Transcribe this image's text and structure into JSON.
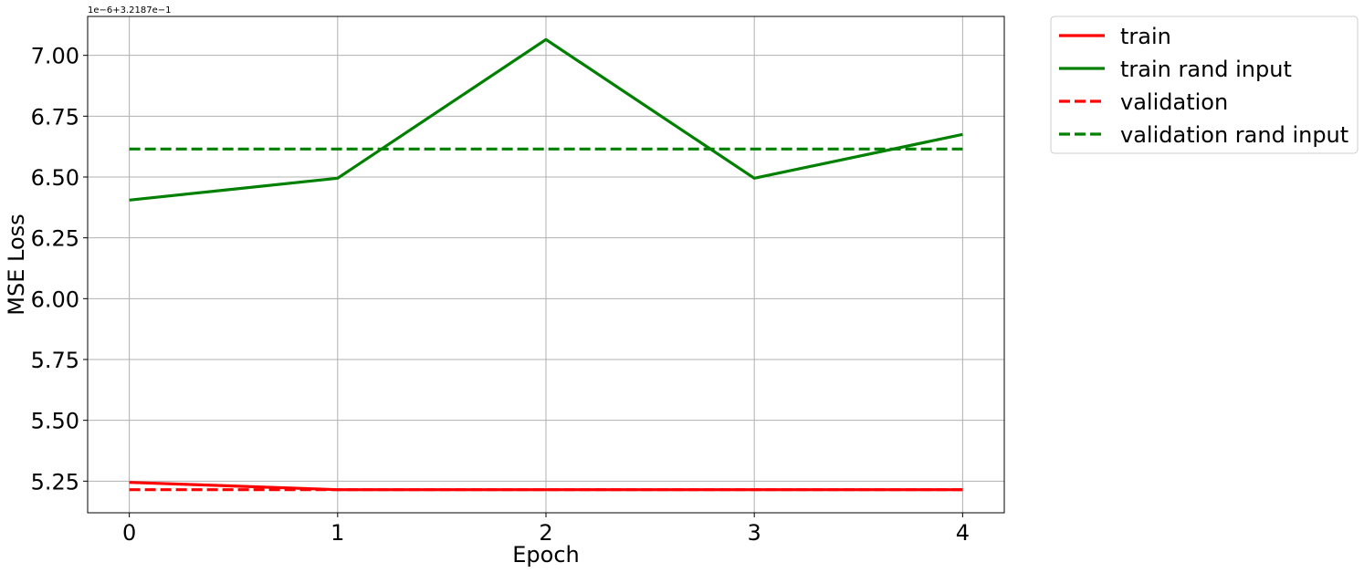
{
  "chart_data": {
    "type": "line",
    "title": "",
    "xlabel": "Epoch",
    "ylabel": "MSE Loss",
    "offset_text": "1e−6+3.2187e−1",
    "x": [
      0,
      1,
      2,
      3,
      4
    ],
    "xlim": [
      -0.2,
      4.2
    ],
    "ylim": [
      5.12,
      7.16
    ],
    "xticks": [
      0,
      1,
      2,
      3,
      4
    ],
    "xtick_labels": [
      "0",
      "1",
      "2",
      "3",
      "4"
    ],
    "yticks": [
      5.25,
      5.5,
      5.75,
      6.0,
      6.25,
      6.5,
      6.75,
      7.0
    ],
    "ytick_labels": [
      "5.25",
      "5.50",
      "5.75",
      "6.00",
      "6.25",
      "6.50",
      "6.75",
      "7.00"
    ],
    "grid": true,
    "legend_position": "outside-top-right",
    "series": [
      {
        "name": "train",
        "values": [
          5.245,
          5.215,
          5.215,
          5.215,
          5.215
        ],
        "color": "#ff0000",
        "style": "solid"
      },
      {
        "name": "train rand input",
        "values": [
          6.405,
          6.495,
          7.065,
          6.495,
          6.675
        ],
        "color": "#008000",
        "style": "solid"
      },
      {
        "name": "validation",
        "values": [
          5.215,
          5.215,
          5.215,
          5.215,
          5.215
        ],
        "color": "#ff0000",
        "style": "dashed"
      },
      {
        "name": "validation rand input",
        "values": [
          6.615,
          6.615,
          6.615,
          6.615,
          6.615
        ],
        "color": "#008000",
        "style": "dashed"
      }
    ]
  }
}
